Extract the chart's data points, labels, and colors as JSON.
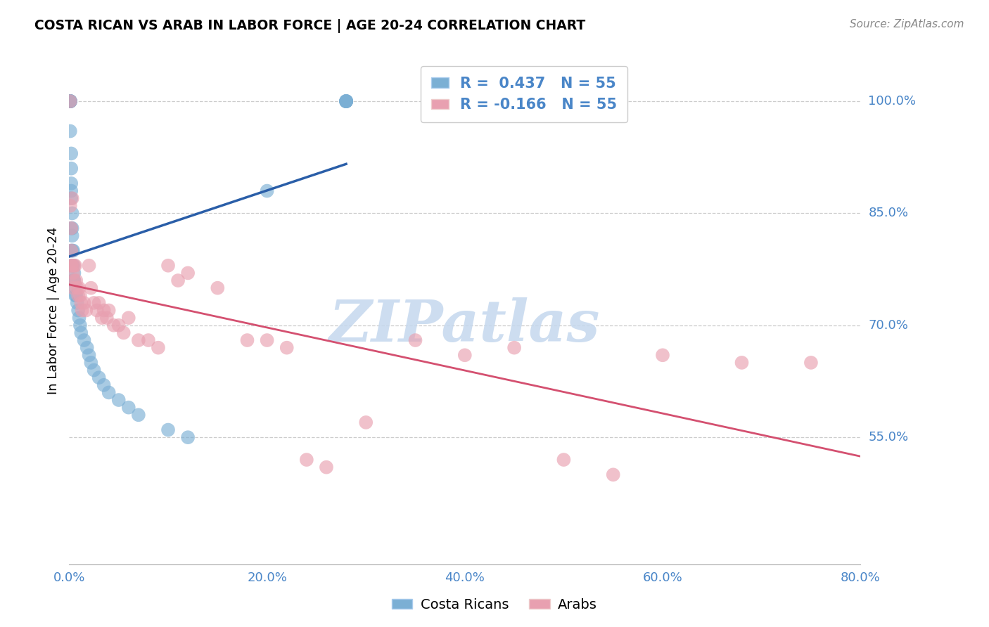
{
  "title": "COSTA RICAN VS ARAB IN LABOR FORCE | AGE 20-24 CORRELATION CHART",
  "source": "Source: ZipAtlas.com",
  "ylabel": "In Labor Force | Age 20-24",
  "xlim": [
    0.0,
    0.8
  ],
  "ylim": [
    0.38,
    1.06
  ],
  "yticks": [
    0.55,
    0.7,
    0.85,
    1.0
  ],
  "ytick_labels": [
    "55.0%",
    "70.0%",
    "85.0%",
    "100.0%"
  ],
  "xticks": [
    0.0,
    0.1,
    0.2,
    0.3,
    0.4,
    0.5,
    0.6,
    0.7,
    0.8
  ],
  "xtick_labels": [
    "0.0%",
    "",
    "20.0%",
    "",
    "40.0%",
    "",
    "60.0%",
    "",
    "80.0%"
  ],
  "blue_color": "#7bafd4",
  "pink_color": "#e8a0b0",
  "blue_line_color": "#2a5ea8",
  "pink_line_color": "#d45070",
  "axis_color": "#4a86c8",
  "grid_color": "#cccccc",
  "watermark": "ZIPatlas",
  "watermark_color": "#c5d8ee",
  "legend_R_blue": "R =  0.437   N = 55",
  "legend_R_pink": "R = -0.166   N = 55",
  "blue_x": [
    0.001,
    0.001,
    0.001,
    0.001,
    0.001,
    0.001,
    0.001,
    0.001,
    0.001,
    0.001,
    0.002,
    0.002,
    0.002,
    0.002,
    0.002,
    0.002,
    0.002,
    0.003,
    0.003,
    0.003,
    0.003,
    0.003,
    0.004,
    0.004,
    0.004,
    0.005,
    0.005,
    0.006,
    0.006,
    0.007,
    0.008,
    0.009,
    0.01,
    0.011,
    0.012,
    0.015,
    0.018,
    0.02,
    0.022,
    0.025,
    0.03,
    0.035,
    0.04,
    0.05,
    0.06,
    0.07,
    0.1,
    0.12,
    0.2,
    0.28,
    0.28,
    0.28,
    0.28,
    0.28,
    0.28
  ],
  "blue_y": [
    1.0,
    1.0,
    1.0,
    1.0,
    1.0,
    1.0,
    1.0,
    1.0,
    1.0,
    0.96,
    0.93,
    0.91,
    0.89,
    0.88,
    0.87,
    0.83,
    0.8,
    0.85,
    0.83,
    0.82,
    0.8,
    0.78,
    0.8,
    0.78,
    0.76,
    0.77,
    0.76,
    0.75,
    0.74,
    0.74,
    0.73,
    0.72,
    0.71,
    0.7,
    0.69,
    0.68,
    0.67,
    0.66,
    0.65,
    0.64,
    0.63,
    0.62,
    0.61,
    0.6,
    0.59,
    0.58,
    0.56,
    0.55,
    0.88,
    1.0,
    1.0,
    1.0,
    1.0,
    1.0,
    1.0
  ],
  "pink_x": [
    0.001,
    0.001,
    0.002,
    0.002,
    0.002,
    0.003,
    0.003,
    0.004,
    0.004,
    0.005,
    0.005,
    0.006,
    0.007,
    0.008,
    0.009,
    0.01,
    0.011,
    0.012,
    0.013,
    0.015,
    0.017,
    0.02,
    0.022,
    0.025,
    0.028,
    0.03,
    0.033,
    0.035,
    0.038,
    0.04,
    0.045,
    0.05,
    0.055,
    0.06,
    0.07,
    0.08,
    0.09,
    0.1,
    0.11,
    0.12,
    0.15,
    0.18,
    0.2,
    0.22,
    0.24,
    0.26,
    0.3,
    0.35,
    0.4,
    0.45,
    0.5,
    0.55,
    0.6,
    0.68,
    0.75
  ],
  "pink_y": [
    1.0,
    0.86,
    0.83,
    0.8,
    0.78,
    0.87,
    0.78,
    0.77,
    0.75,
    0.78,
    0.76,
    0.78,
    0.76,
    0.75,
    0.74,
    0.75,
    0.74,
    0.73,
    0.72,
    0.73,
    0.72,
    0.78,
    0.75,
    0.73,
    0.72,
    0.73,
    0.71,
    0.72,
    0.71,
    0.72,
    0.7,
    0.7,
    0.69,
    0.71,
    0.68,
    0.68,
    0.67,
    0.78,
    0.76,
    0.77,
    0.75,
    0.68,
    0.68,
    0.67,
    0.52,
    0.51,
    0.57,
    0.68,
    0.66,
    0.67,
    0.52,
    0.5,
    0.66,
    0.65,
    0.65
  ]
}
